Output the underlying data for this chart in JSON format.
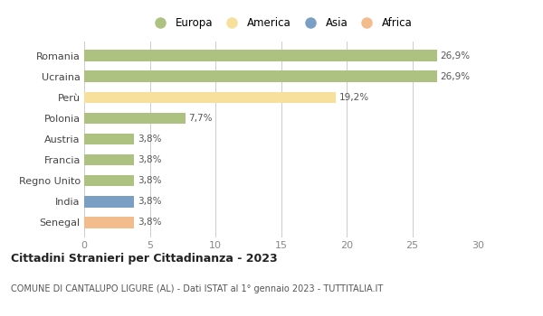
{
  "categories": [
    "Senegal",
    "India",
    "Regno Unito",
    "Francia",
    "Austria",
    "Polonia",
    "Perù",
    "Ucraina",
    "Romania"
  ],
  "values": [
    3.8,
    3.8,
    3.8,
    3.8,
    3.8,
    7.7,
    19.2,
    26.9,
    26.9
  ],
  "labels": [
    "3,8%",
    "3,8%",
    "3,8%",
    "3,8%",
    "3,8%",
    "7,7%",
    "19,2%",
    "26,9%",
    "26,9%"
  ],
  "colors": [
    "#f2bc8d",
    "#7b9fc4",
    "#adc180",
    "#adc180",
    "#adc180",
    "#adc180",
    "#f7e09b",
    "#adc180",
    "#adc180"
  ],
  "legend_labels": [
    "Europa",
    "America",
    "Asia",
    "Africa"
  ],
  "legend_colors": [
    "#adc180",
    "#f7e09b",
    "#7b9fc4",
    "#f2bc8d"
  ],
  "title_bold": "Cittadini Stranieri per Cittadinanza - 2023",
  "subtitle": "COMUNE DI CANTALUPO LIGURE (AL) - Dati ISTAT al 1° gennaio 2023 - TUTTITALIA.IT",
  "xlim": [
    0,
    30
  ],
  "xticks": [
    0,
    5,
    10,
    15,
    20,
    25,
    30
  ],
  "background_color": "#ffffff",
  "grid_color": "#cccccc",
  "bar_height": 0.55
}
